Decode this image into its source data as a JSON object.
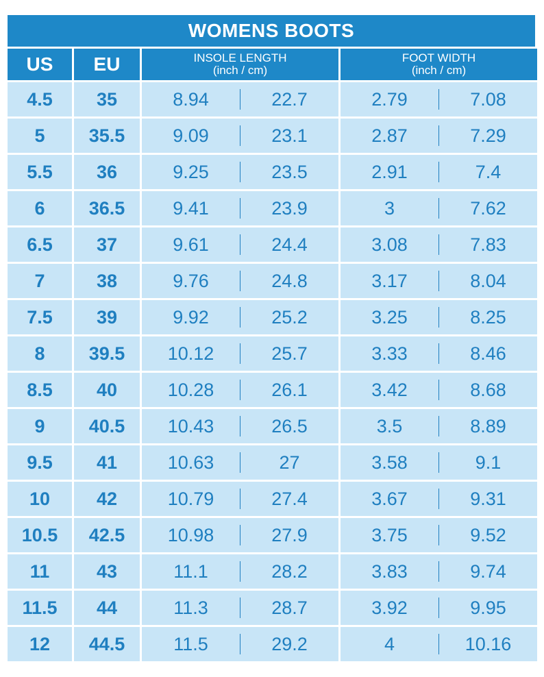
{
  "title": "WOMENS BOOTS",
  "headers": {
    "us": "US",
    "eu": "EU",
    "insole_line1": "INSOLE LENGTH",
    "insole_line2": "(inch / cm)",
    "width_line1": "FOOT WIDTH",
    "width_line2": "(inch / cm)"
  },
  "rows": [
    {
      "us": "4.5",
      "eu": "35",
      "insole_in": "8.94",
      "insole_cm": "22.7",
      "width_in": "2.79",
      "width_cm": "7.08"
    },
    {
      "us": "5",
      "eu": "35.5",
      "insole_in": "9.09",
      "insole_cm": "23.1",
      "width_in": "2.87",
      "width_cm": "7.29"
    },
    {
      "us": "5.5",
      "eu": "36",
      "insole_in": "9.25",
      "insole_cm": "23.5",
      "width_in": "2.91",
      "width_cm": "7.4"
    },
    {
      "us": "6",
      "eu": "36.5",
      "insole_in": "9.41",
      "insole_cm": "23.9",
      "width_in": "3",
      "width_cm": "7.62"
    },
    {
      "us": "6.5",
      "eu": "37",
      "insole_in": "9.61",
      "insole_cm": "24.4",
      "width_in": "3.08",
      "width_cm": "7.83"
    },
    {
      "us": "7",
      "eu": "38",
      "insole_in": "9.76",
      "insole_cm": "24.8",
      "width_in": "3.17",
      "width_cm": "8.04"
    },
    {
      "us": "7.5",
      "eu": "39",
      "insole_in": "9.92",
      "insole_cm": "25.2",
      "width_in": "3.25",
      "width_cm": "8.25"
    },
    {
      "us": "8",
      "eu": "39.5",
      "insole_in": "10.12",
      "insole_cm": "25.7",
      "width_in": "3.33",
      "width_cm": "8.46"
    },
    {
      "us": "8.5",
      "eu": "40",
      "insole_in": "10.28",
      "insole_cm": "26.1",
      "width_in": "3.42",
      "width_cm": "8.68"
    },
    {
      "us": "9",
      "eu": "40.5",
      "insole_in": "10.43",
      "insole_cm": "26.5",
      "width_in": "3.5",
      "width_cm": "8.89"
    },
    {
      "us": "9.5",
      "eu": "41",
      "insole_in": "10.63",
      "insole_cm": "27",
      "width_in": "3.58",
      "width_cm": "9.1"
    },
    {
      "us": "10",
      "eu": "42",
      "insole_in": "10.79",
      "insole_cm": "27.4",
      "width_in": "3.67",
      "width_cm": "9.31"
    },
    {
      "us": "10.5",
      "eu": "42.5",
      "insole_in": "10.98",
      "insole_cm": "27.9",
      "width_in": "3.75",
      "width_cm": "9.52"
    },
    {
      "us": "11",
      "eu": "43",
      "insole_in": "11.1",
      "insole_cm": "28.2",
      "width_in": "3.83",
      "width_cm": "9.74"
    },
    {
      "us": "11.5",
      "eu": "44",
      "insole_in": "11.3",
      "insole_cm": "28.7",
      "width_in": "3.92",
      "width_cm": "9.95"
    },
    {
      "us": "12",
      "eu": "44.5",
      "insole_in": "11.5",
      "insole_cm": "29.2",
      "width_in": "4",
      "width_cm": "10.16"
    }
  ],
  "colors": {
    "header_bg": "#1e88c8",
    "cell_bg": "#c8e5f7",
    "text": "#1f7fc0"
  }
}
